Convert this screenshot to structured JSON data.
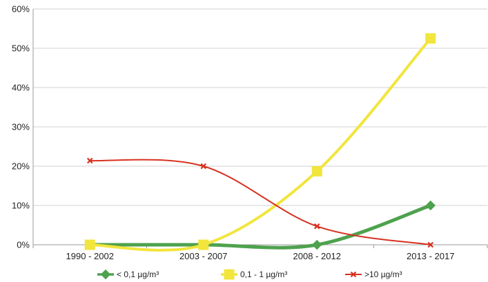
{
  "chart_data": {
    "type": "line",
    "categories": [
      "1990 - 2002",
      "2003 - 2007",
      "2008 - 2012",
      "2013 - 2017"
    ],
    "ylim": [
      0,
      60
    ],
    "yticks": [
      "0%",
      "10%",
      "20%",
      "30%",
      "40%",
      "50%",
      "60%"
    ],
    "grid": "horizontal",
    "legend_position": "bottom",
    "series": [
      {
        "name": "< 0,1 µg/m³",
        "color": "#4ea24e",
        "marker": "diamond",
        "values": [
          0,
          0,
          0,
          10
        ]
      },
      {
        "name": "0,1 - 1 µg/m³",
        "color": "#f2e53c",
        "marker": "square",
        "values": [
          0,
          0,
          18.7,
          52.5
        ]
      },
      {
        "name": ">10 µg/m³",
        "color": "#d7301f",
        "marker": "x",
        "values": [
          21.4,
          20,
          4.7,
          0
        ]
      }
    ]
  }
}
